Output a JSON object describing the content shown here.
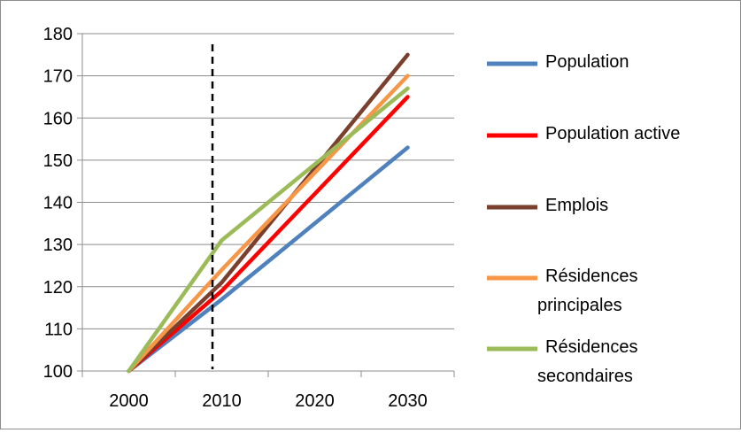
{
  "chart_data": {
    "type": "line",
    "title": "",
    "xlabel": "",
    "ylabel": "",
    "x": [
      2000,
      2010,
      2030
    ],
    "x_ticks": [
      "2000",
      "2010",
      "2020",
      "2030"
    ],
    "x_range": [
      1995,
      2035
    ],
    "ylim": [
      100,
      180
    ],
    "y_ticks": [
      "100",
      "110",
      "120",
      "130",
      "140",
      "150",
      "160",
      "170",
      "180"
    ],
    "grid": "horizontal",
    "legend_position": "right",
    "marker_line": {
      "x": 2009,
      "style": "dashed",
      "color": "#000000"
    },
    "series": [
      {
        "name": "Population",
        "color": "#4f81bd",
        "values": [
          100,
          117,
          153
        ]
      },
      {
        "name": "Population active",
        "color": "#ff0000",
        "values": [
          100,
          119,
          165
        ]
      },
      {
        "name": "Emplois",
        "color": "#7b3f2e",
        "values": [
          100,
          121,
          175
        ]
      },
      {
        "name": "Résidences principales",
        "name_lines": [
          "Résidences",
          "principales"
        ],
        "color": "#f79646",
        "values": [
          100,
          124,
          170
        ]
      },
      {
        "name": "Résidences secondaires",
        "name_lines": [
          "Résidences",
          "secondaires"
        ],
        "color": "#9bbb59",
        "values": [
          100,
          131,
          167
        ]
      }
    ]
  }
}
